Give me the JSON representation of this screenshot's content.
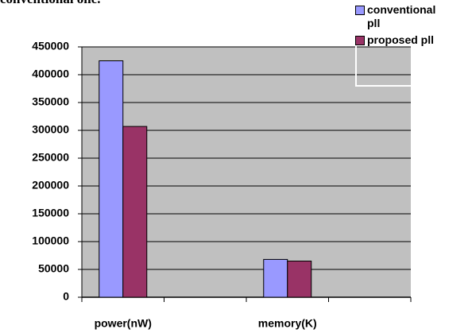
{
  "chart_data": {
    "type": "bar",
    "text_fragment": "conventional one.",
    "categories": [
      "power(nW)",
      null,
      "memory(K)",
      null
    ],
    "series": [
      {
        "name": "conventional pll",
        "color": "#9999ff",
        "values": [
          425000,
          null,
          68000,
          null
        ]
      },
      {
        "name": "proposed pll",
        "color": "#993366",
        "values": [
          307000,
          null,
          65000,
          null
        ]
      }
    ],
    "ylim": [
      0,
      450000
    ],
    "yticks": [
      0,
      50000,
      100000,
      150000,
      200000,
      250000,
      300000,
      350000,
      400000,
      450000
    ],
    "grid": true,
    "legend": "top-right",
    "plot_background": "#c0c0c0"
  }
}
